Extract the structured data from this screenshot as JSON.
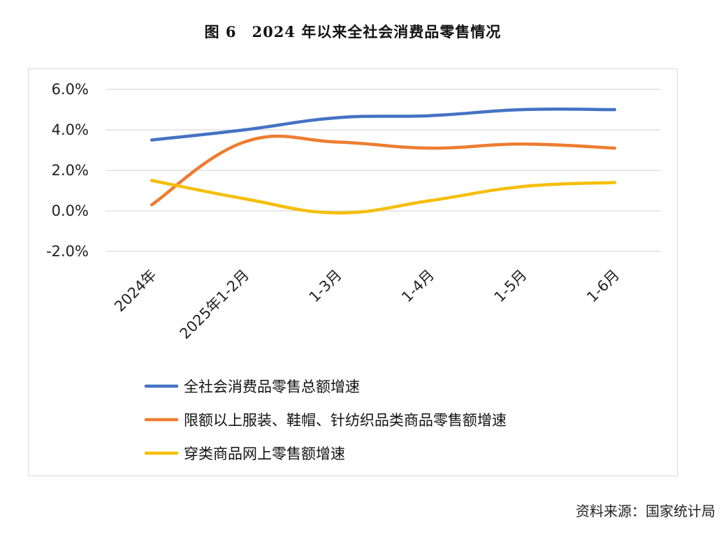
{
  "figure": {
    "title": "图 6　2024 年以来全社会消费品零售情况",
    "source": "资料来源：国家统计局"
  },
  "chart_data": {
    "type": "line",
    "title": "",
    "xlabel": "",
    "ylabel": "",
    "categories": [
      "2024年",
      "2025年1-2月",
      "1-3月",
      "1-4月",
      "1-5月",
      "1-6月"
    ],
    "ylim": [
      -2.0,
      6.0
    ],
    "yticks": [
      "-2.0%",
      "0.0%",
      "2.0%",
      "4.0%",
      "6.0%"
    ],
    "ytick_values": [
      -2.0,
      0.0,
      2.0,
      4.0,
      6.0
    ],
    "grid": "horizontal",
    "legend_position": "bottom",
    "smooth": true,
    "series": [
      {
        "name": "全社会消费品零售总额增速",
        "color": "#4472C4",
        "values": [
          3.5,
          4.0,
          4.6,
          4.7,
          5.0,
          5.0
        ]
      },
      {
        "name": "限额以上服装、鞋帽、针纺织品类商品零售额增速",
        "color": "#ED7D31",
        "values": [
          0.3,
          3.4,
          3.4,
          3.1,
          3.3,
          3.1
        ]
      },
      {
        "name": "穿类商品网上零售额增速",
        "color": "#F5BE0A",
        "values": [
          1.5,
          0.6,
          -0.1,
          0.5,
          1.2,
          1.4
        ]
      }
    ]
  }
}
